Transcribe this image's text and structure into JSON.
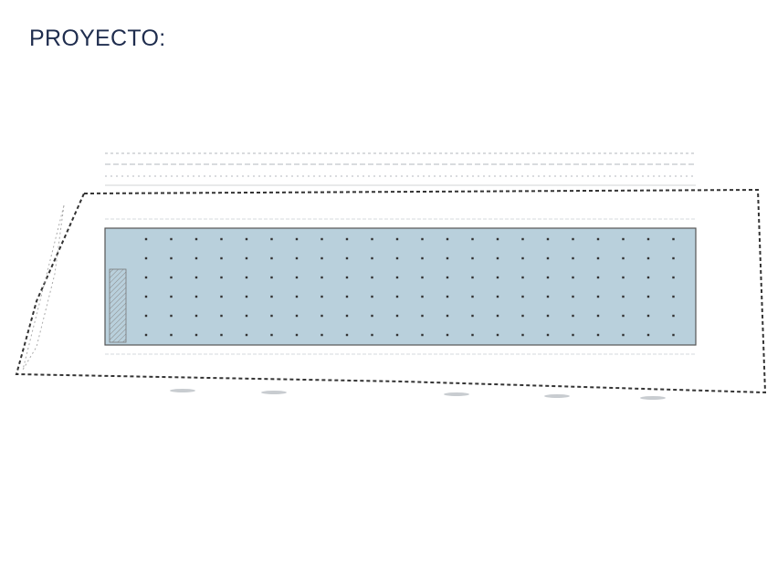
{
  "header": {
    "title": "PROYECTO:"
  }
}
